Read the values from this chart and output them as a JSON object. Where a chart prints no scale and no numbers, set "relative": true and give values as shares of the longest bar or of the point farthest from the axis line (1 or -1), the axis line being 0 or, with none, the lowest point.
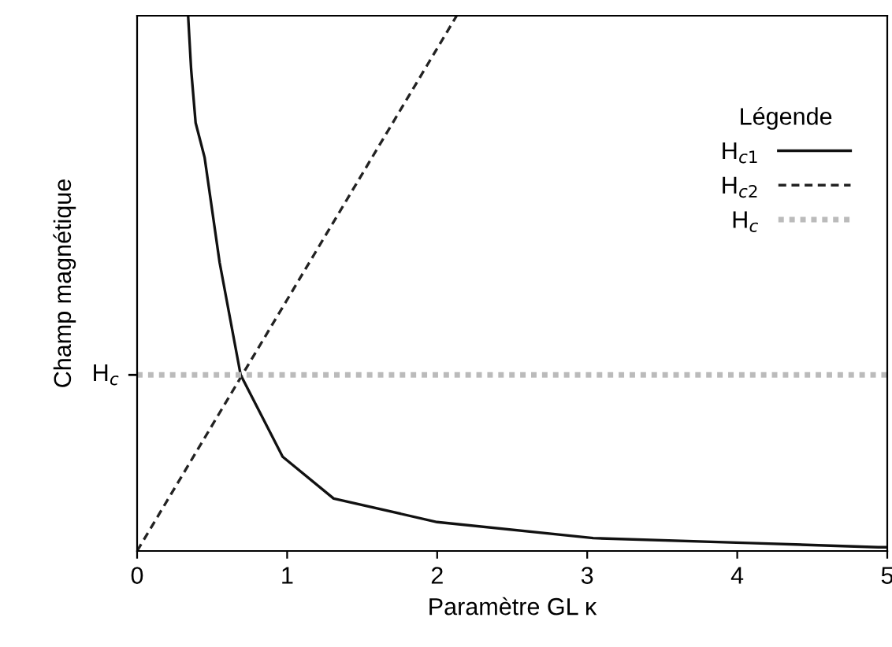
{
  "chart_data": {
    "type": "line",
    "relative": true,
    "xlabel": "Paramètre GL κ",
    "ylabel": "Champ magnétique",
    "xlim": [
      0,
      5
    ],
    "xticks": [
      0,
      1,
      2,
      3,
      4,
      5
    ],
    "grid": false,
    "legend": "top right",
    "legend_title": "Légende",
    "marker": "none",
    "annotations": [
      {
        "text": "H$_{c}$",
        "x": 0,
        "y": 0.329
      }
    ],
    "series": [
      {
        "name": "H$_{c1}$",
        "color": "#111111",
        "line_style": "solid",
        "x": [
          0.34,
          0.36,
          0.39,
          0.45,
          0.55,
          0.69,
          0.97,
          1.31,
          2.0,
          3.04,
          4.08,
          4.94,
          5
        ],
        "values": [
          1,
          0.9,
          0.8,
          0.735,
          0.539,
          0.329,
          0.176,
          0.098,
          0.054,
          0.024,
          0.015,
          0.007,
          0.007
        ]
      },
      {
        "name": "H$_{c2}$",
        "color": "#222222",
        "line_style": "dashed",
        "x": [
          0,
          2.13
        ],
        "values": [
          0,
          1
        ]
      },
      {
        "name": "H$_{c}$",
        "color": "#bbbbbb",
        "line_style": "dotted",
        "x": [
          0,
          5
        ],
        "values": [
          0.329,
          0.329
        ]
      }
    ]
  }
}
